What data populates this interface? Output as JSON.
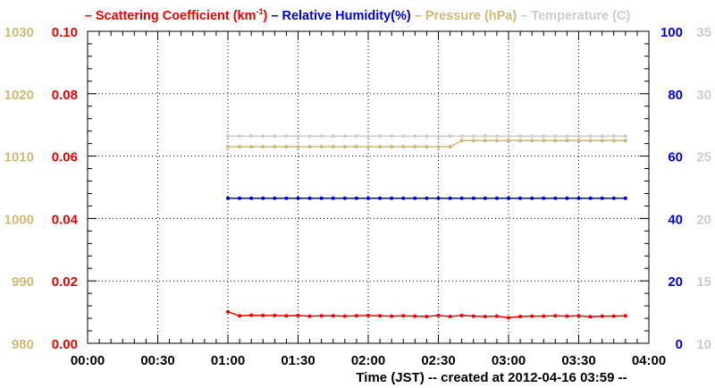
{
  "chart_data": {
    "type": "line",
    "legend": {
      "placement": "top",
      "entries": [
        {
          "key": "scattering",
          "dash": "–",
          "text": "Scattering Coefficient (km",
          "sup": "-1",
          "close": ")",
          "color": "#ee0000"
        },
        {
          "key": "humidity",
          "dash": "–",
          "text": "Relative Humidity(%)",
          "color": "#0000dd"
        },
        {
          "key": "pressure",
          "dash": "–",
          "text": "Pressure (hPa)",
          "color": "#ccbb77"
        },
        {
          "key": "temperature",
          "dash": "–",
          "text": "Temperature (C)",
          "color": "#cccccc"
        }
      ]
    },
    "xlabel": "Time (JST)",
    "created_text": "-- created at 2012-04-16 03:59 --",
    "grid": true,
    "x_ticks": [
      "00:00",
      "00:30",
      "01:00",
      "01:30",
      "02:00",
      "02:30",
      "03:00",
      "03:30",
      "04:00"
    ],
    "xlim_minutes": [
      0,
      240
    ],
    "axes": {
      "pressure": {
        "ylim": [
          980,
          1030
        ],
        "ticks": [
          980,
          990,
          1000,
          1010,
          1020,
          1030
        ],
        "color": "#ccbb77"
      },
      "scattering": {
        "ylim": [
          0.0,
          0.1
        ],
        "ticks": [
          "0.00",
          "0.02",
          "0.04",
          "0.06",
          "0.08",
          "0.10"
        ],
        "color": "#ee0000"
      },
      "humidity": {
        "ylim": [
          0,
          100
        ],
        "ticks": [
          0,
          20,
          40,
          60,
          80,
          100
        ],
        "color": "#0000dd"
      },
      "temperature": {
        "ylim": [
          10,
          35
        ],
        "ticks": [
          10,
          15,
          20,
          25,
          30,
          35
        ],
        "color": "#cccccc"
      }
    },
    "x_minutes": [
      60,
      65,
      70,
      75,
      80,
      85,
      90,
      95,
      100,
      105,
      110,
      115,
      120,
      125,
      130,
      135,
      140,
      145,
      150,
      155,
      160,
      165,
      170,
      175,
      180,
      185,
      190,
      195,
      200,
      205,
      210,
      215,
      220,
      225,
      230
    ],
    "series": [
      {
        "name": "Scattering Coefficient",
        "axis": "scattering",
        "color": "#ee0000",
        "values": [
          0.0101,
          0.0088,
          0.009,
          0.0089,
          0.0089,
          0.0088,
          0.0089,
          0.0087,
          0.0088,
          0.0088,
          0.0087,
          0.0088,
          0.0089,
          0.0088,
          0.0087,
          0.0088,
          0.0087,
          0.0086,
          0.0089,
          0.0086,
          0.0089,
          0.0087,
          0.0086,
          0.0087,
          0.0082,
          0.0086,
          0.0087,
          0.0087,
          0.0088,
          0.0087,
          0.0088,
          0.0085,
          0.0087,
          0.0087,
          0.0088
        ]
      },
      {
        "name": "Relative Humidity",
        "axis": "humidity",
        "color": "#0000dd",
        "values": [
          46.5,
          46.5,
          46.5,
          46.5,
          46.5,
          46.5,
          46.5,
          46.5,
          46.5,
          46.5,
          46.5,
          46.5,
          46.5,
          46.5,
          46.5,
          46.5,
          46.5,
          46.5,
          46.5,
          46.5,
          46.5,
          46.5,
          46.5,
          46.5,
          46.5,
          46.5,
          46.5,
          46.5,
          46.5,
          46.5,
          46.5,
          46.5,
          46.5,
          46.5,
          46.5
        ]
      },
      {
        "name": "Pressure",
        "axis": "pressure",
        "color": "#ccbb77",
        "values": [
          1011.5,
          1011.5,
          1011.5,
          1011.5,
          1011.5,
          1011.5,
          1011.5,
          1011.5,
          1011.5,
          1011.5,
          1011.5,
          1011.5,
          1011.5,
          1011.5,
          1011.5,
          1011.5,
          1011.5,
          1011.5,
          1011.5,
          1011.5,
          1012.5,
          1012.5,
          1012.5,
          1012.5,
          1012.5,
          1012.5,
          1012.5,
          1012.5,
          1012.5,
          1012.5,
          1012.5,
          1012.5,
          1012.5,
          1012.5,
          1012.5
        ]
      },
      {
        "name": "Temperature",
        "axis": "temperature",
        "color": "#cccccc",
        "values": [
          26.6,
          26.6,
          26.6,
          26.6,
          26.6,
          26.6,
          26.6,
          26.6,
          26.6,
          26.6,
          26.6,
          26.6,
          26.6,
          26.6,
          26.6,
          26.6,
          26.6,
          26.6,
          26.6,
          26.6,
          26.6,
          26.6,
          26.6,
          26.6,
          26.6,
          26.6,
          26.6,
          26.6,
          26.6,
          26.6,
          26.6,
          26.6,
          26.6,
          26.6,
          26.6
        ]
      }
    ]
  }
}
